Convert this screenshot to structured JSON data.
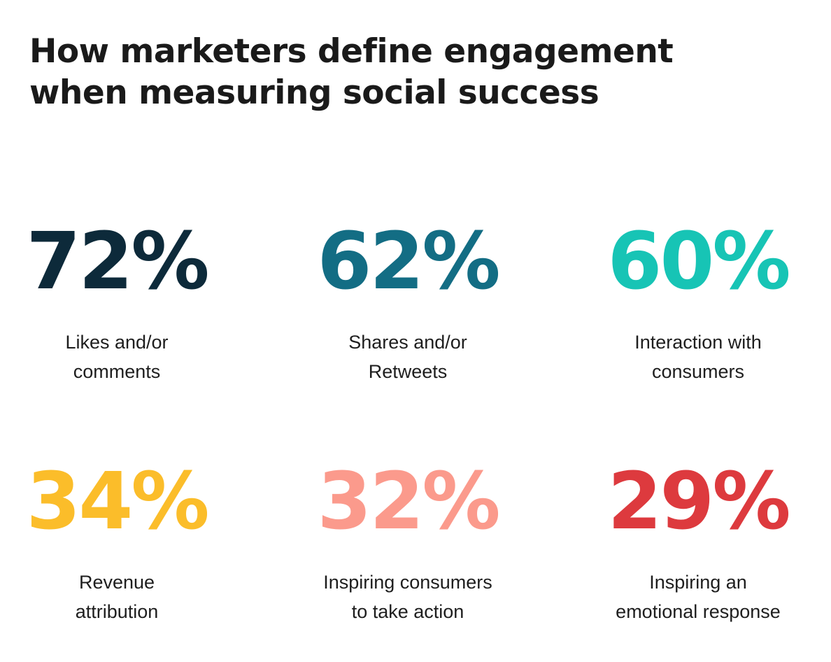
{
  "title": {
    "line1": "How marketers define engagement",
    "line2": "when measuring social success"
  },
  "chart_data": {
    "type": "table",
    "title": "How marketers define engagement when measuring social success",
    "unit": "%",
    "stats": [
      {
        "value": "72%",
        "number": 72,
        "label_line1": "Likes and/or",
        "label_line2": "comments",
        "color": "#0d2a3a"
      },
      {
        "value": "62%",
        "number": 62,
        "label_line1": "Shares and/or",
        "label_line2": "Retweets",
        "color": "#136d84"
      },
      {
        "value": "60%",
        "number": 60,
        "label_line1": "Interaction with",
        "label_line2": "consumers",
        "color": "#17c4b5"
      },
      {
        "value": "34%",
        "number": 34,
        "label_line1": "Revenue",
        "label_line2": "attribution",
        "color": "#fbbd2a"
      },
      {
        "value": "32%",
        "number": 32,
        "label_line1": "Inspiring consumers",
        "label_line2": "to take action",
        "color": "#fb9a8c"
      },
      {
        "value": "29%",
        "number": 29,
        "label_line1": "Inspiring an",
        "label_line2": "emotional response",
        "color": "#dd3a3e"
      }
    ]
  }
}
